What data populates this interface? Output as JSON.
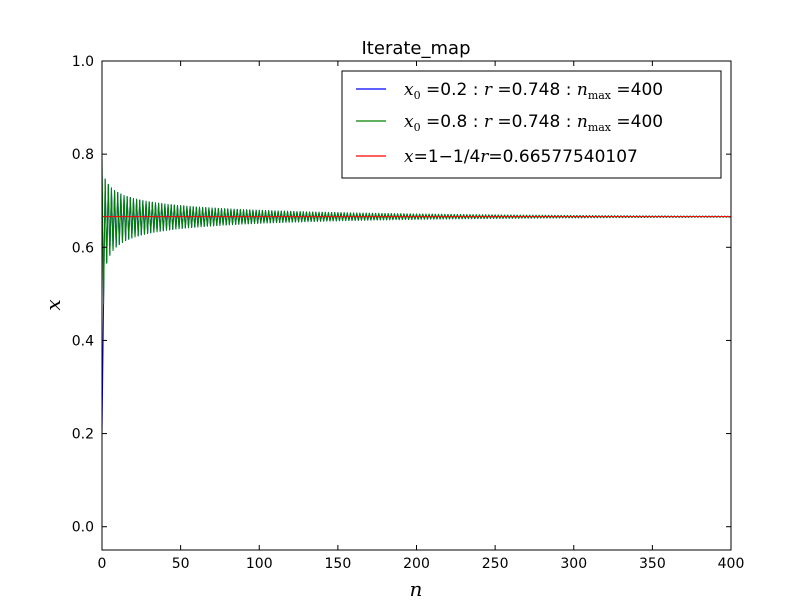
{
  "chart_data": {
    "type": "line",
    "title": "Iterate_map",
    "xlabel": "n",
    "ylabel": "x",
    "xlim": [
      0,
      400
    ],
    "ylim": [
      -0.05,
      1.0
    ],
    "xticks": [
      0,
      50,
      100,
      150,
      200,
      250,
      300,
      350,
      400
    ],
    "yticks": [
      0.0,
      0.2,
      0.4,
      0.6,
      0.8,
      1.0
    ],
    "xtick_labels": [
      "0",
      "50",
      "100",
      "150",
      "200",
      "250",
      "300",
      "350",
      "400"
    ],
    "ytick_labels": [
      "0.0",
      "0.2",
      "0.4",
      "0.6",
      "0.8",
      "1.0"
    ],
    "grid": false,
    "legend_position": "top-right",
    "map": {
      "r": 0.748,
      "n_max": 400
    },
    "series": [
      {
        "x0": 0.2,
        "r": 0.748,
        "n_max": 400,
        "color": "#0000ff"
      },
      {
        "x0": 0.8,
        "r": 0.748,
        "n_max": 400,
        "color": "#008000"
      },
      {
        "value": 0.66577540107,
        "color": "#ff0000"
      }
    ],
    "legend": [
      {
        "x0_value": "0.2",
        "r_value": "0.748",
        "nmax_value": "400"
      },
      {
        "x0_value": "0.8",
        "r_value": "0.748",
        "nmax_value": "400"
      },
      {
        "fixed_point_value": "0.66577540107"
      }
    ]
  }
}
